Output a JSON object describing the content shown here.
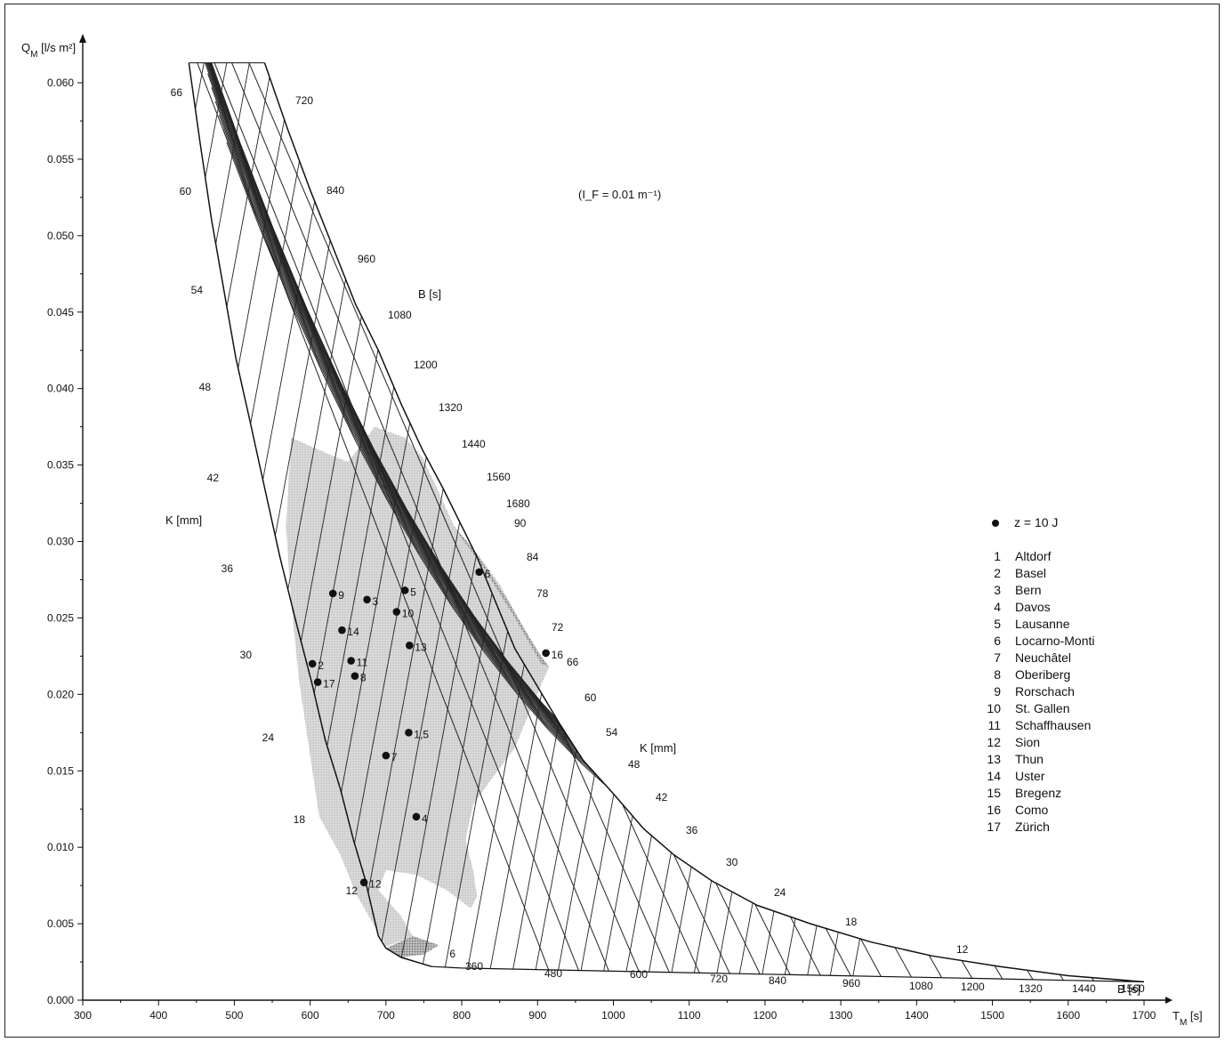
{
  "chart_data": {
    "type": "scatter",
    "title": "",
    "xlabel": "T_M [s]",
    "ylabel": "Q_M [l/s m²]",
    "xlim": [
      300,
      1700
    ],
    "ylim": [
      0.0,
      0.062
    ],
    "x_ticks": [
      300,
      400,
      500,
      600,
      700,
      800,
      900,
      1000,
      1100,
      1200,
      1300,
      1400,
      1500,
      1600,
      1700
    ],
    "y_ticks": [
      0.0,
      0.005,
      0.01,
      0.015,
      0.02,
      0.025,
      0.03,
      0.035,
      0.04,
      0.045,
      0.05,
      0.055,
      0.06
    ],
    "y_tick_labels": [
      "0.000",
      "0.005",
      "0.010",
      "0.015",
      "0.020",
      "0.025",
      "0.030",
      "0.035",
      "0.040",
      "0.045",
      "0.050",
      "0.055",
      "0.060"
    ],
    "parameter_note": "(I_F = 0.01 m⁻¹)",
    "grid_parameters": {
      "K_label": "K [mm]",
      "B_label": "B [s]",
      "K_values": [
        6,
        12,
        18,
        24,
        30,
        36,
        42,
        48,
        54,
        60,
        66,
        72,
        78,
        84,
        90
      ],
      "B_values": [
        360,
        480,
        600,
        720,
        840,
        960,
        1080,
        1200,
        1320,
        1440,
        1560,
        1680
      ],
      "K_labels_left": [
        "66",
        "60",
        "54",
        "48",
        "42",
        "36",
        "30",
        "24",
        "18",
        "12",
        "6"
      ],
      "K_labels_right": [
        "90",
        "84",
        "78",
        "72",
        "66",
        "60",
        "54",
        "48",
        "42",
        "36",
        "30",
        "24",
        "18",
        "12"
      ],
      "B_labels_top": [
        "720",
        "840",
        "960",
        "1080",
        "1200",
        "1320",
        "1440",
        "1560",
        "1680"
      ],
      "B_labels_bottom": [
        "360",
        "480",
        "600",
        "720",
        "840",
        "960",
        "1080",
        "1200",
        "1320",
        "1440",
        "1560"
      ]
    },
    "legend": {
      "marker_label": "z = 10 J",
      "position": "right",
      "stations": [
        {
          "num": "1",
          "name": "Altdorf"
        },
        {
          "num": "2",
          "name": "Basel"
        },
        {
          "num": "3",
          "name": "Bern"
        },
        {
          "num": "4",
          "name": "Davos"
        },
        {
          "num": "5",
          "name": "Lausanne"
        },
        {
          "num": "6",
          "name": "Locarno-Monti"
        },
        {
          "num": "7",
          "name": "Neuchâtel"
        },
        {
          "num": "8",
          "name": "Oberiberg"
        },
        {
          "num": "9",
          "name": "Rorschach"
        },
        {
          "num": "10",
          "name": "St. Gallen"
        },
        {
          "num": "11",
          "name": "Schaffhausen"
        },
        {
          "num": "12",
          "name": "Sion"
        },
        {
          "num": "13",
          "name": "Thun"
        },
        {
          "num": "14",
          "name": "Uster"
        },
        {
          "num": "15",
          "name": "Bregenz"
        },
        {
          "num": "16",
          "name": "Como"
        },
        {
          "num": "17",
          "name": "Zürich"
        }
      ]
    },
    "points": [
      {
        "label": "1,5",
        "x": 730,
        "y": 0.0175
      },
      {
        "label": "2",
        "x": 603,
        "y": 0.022
      },
      {
        "label": "3",
        "x": 675,
        "y": 0.0262
      },
      {
        "label": "4",
        "x": 740,
        "y": 0.012
      },
      {
        "label": "5",
        "x": 725,
        "y": 0.0268
      },
      {
        "label": "6",
        "x": 823,
        "y": 0.028
      },
      {
        "label": "7",
        "x": 700,
        "y": 0.016
      },
      {
        "label": "8",
        "x": 659,
        "y": 0.0212
      },
      {
        "label": "9",
        "x": 630,
        "y": 0.0266
      },
      {
        "label": "10",
        "x": 714,
        "y": 0.0254
      },
      {
        "label": "11",
        "x": 654,
        "y": 0.0222
      },
      {
        "label": "12",
        "x": 671,
        "y": 0.0077
      },
      {
        "label": "13",
        "x": 731,
        "y": 0.0232
      },
      {
        "label": "14",
        "x": 642,
        "y": 0.0242
      },
      {
        "label": "16",
        "x": 911,
        "y": 0.0227
      },
      {
        "label": "17",
        "x": 610,
        "y": 0.0208
      }
    ],
    "grid": false
  }
}
